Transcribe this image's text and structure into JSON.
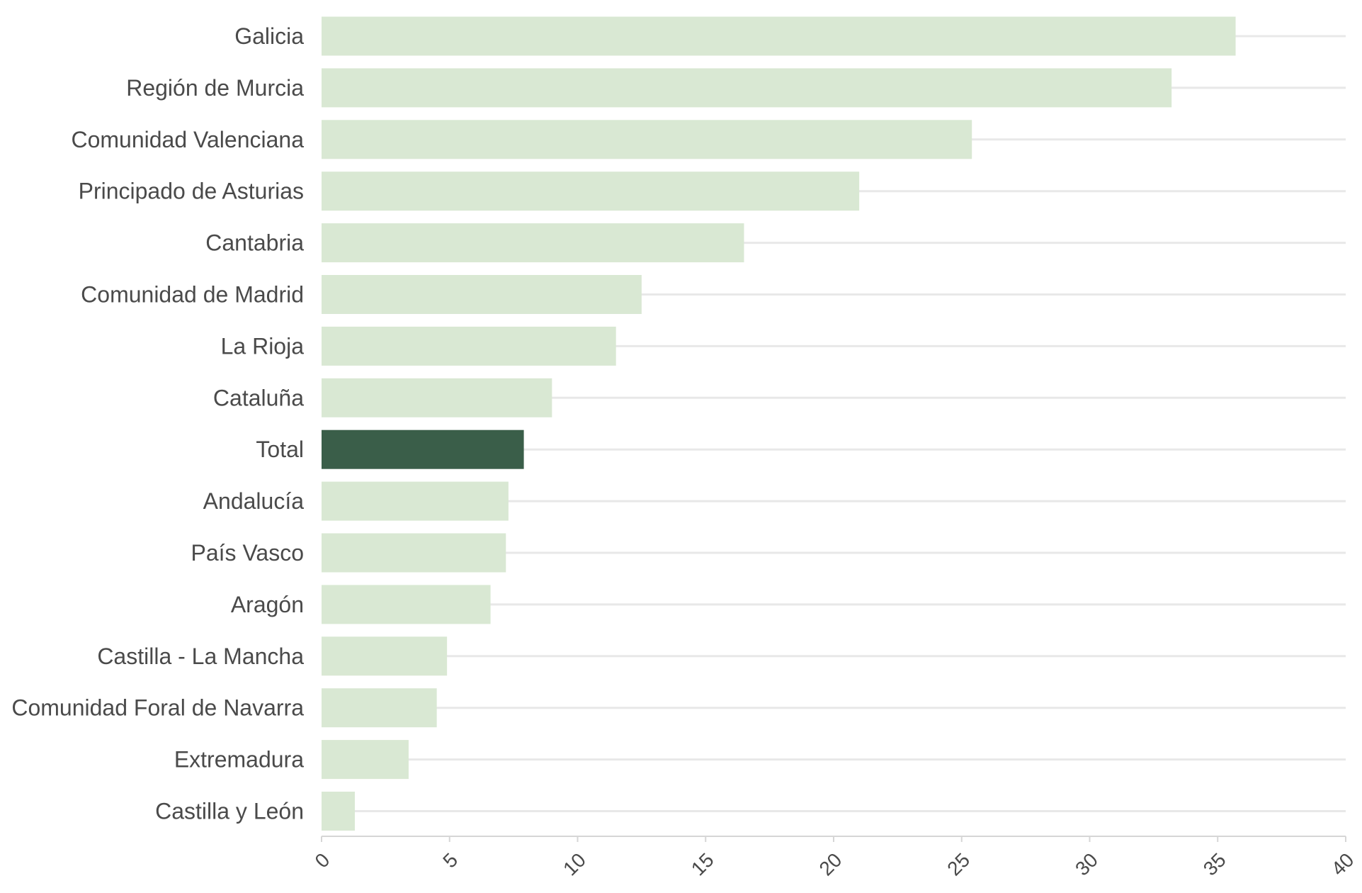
{
  "chart_data": {
    "type": "bar",
    "orientation": "horizontal",
    "categories": [
      "Galicia",
      "Región de Murcia",
      "Comunidad Valenciana",
      "Principado de Asturias",
      "Cantabria",
      "Comunidad de Madrid",
      "La Rioja",
      "Cataluña",
      "Total",
      "Andalucía",
      "País Vasco",
      "Aragón",
      "Castilla - La Mancha",
      "Comunidad Foral de Navarra",
      "Extremadura",
      "Castilla y León"
    ],
    "values": [
      35.7,
      33.2,
      25.4,
      21.0,
      16.5,
      12.5,
      11.5,
      9.0,
      7.9,
      7.3,
      7.2,
      6.6,
      4.9,
      4.5,
      3.4,
      1.3
    ],
    "highlight_category": "Total",
    "xlim": [
      0,
      40
    ],
    "x_ticks": [
      "0",
      "5",
      "10",
      "15",
      "20",
      "25",
      "30",
      "35",
      "40"
    ],
    "grid": true,
    "colors": {
      "bar": "#d9e8d3",
      "highlight": "#3a5e49",
      "grid": "#e8e8e8",
      "text": "#4a4a4a"
    }
  }
}
